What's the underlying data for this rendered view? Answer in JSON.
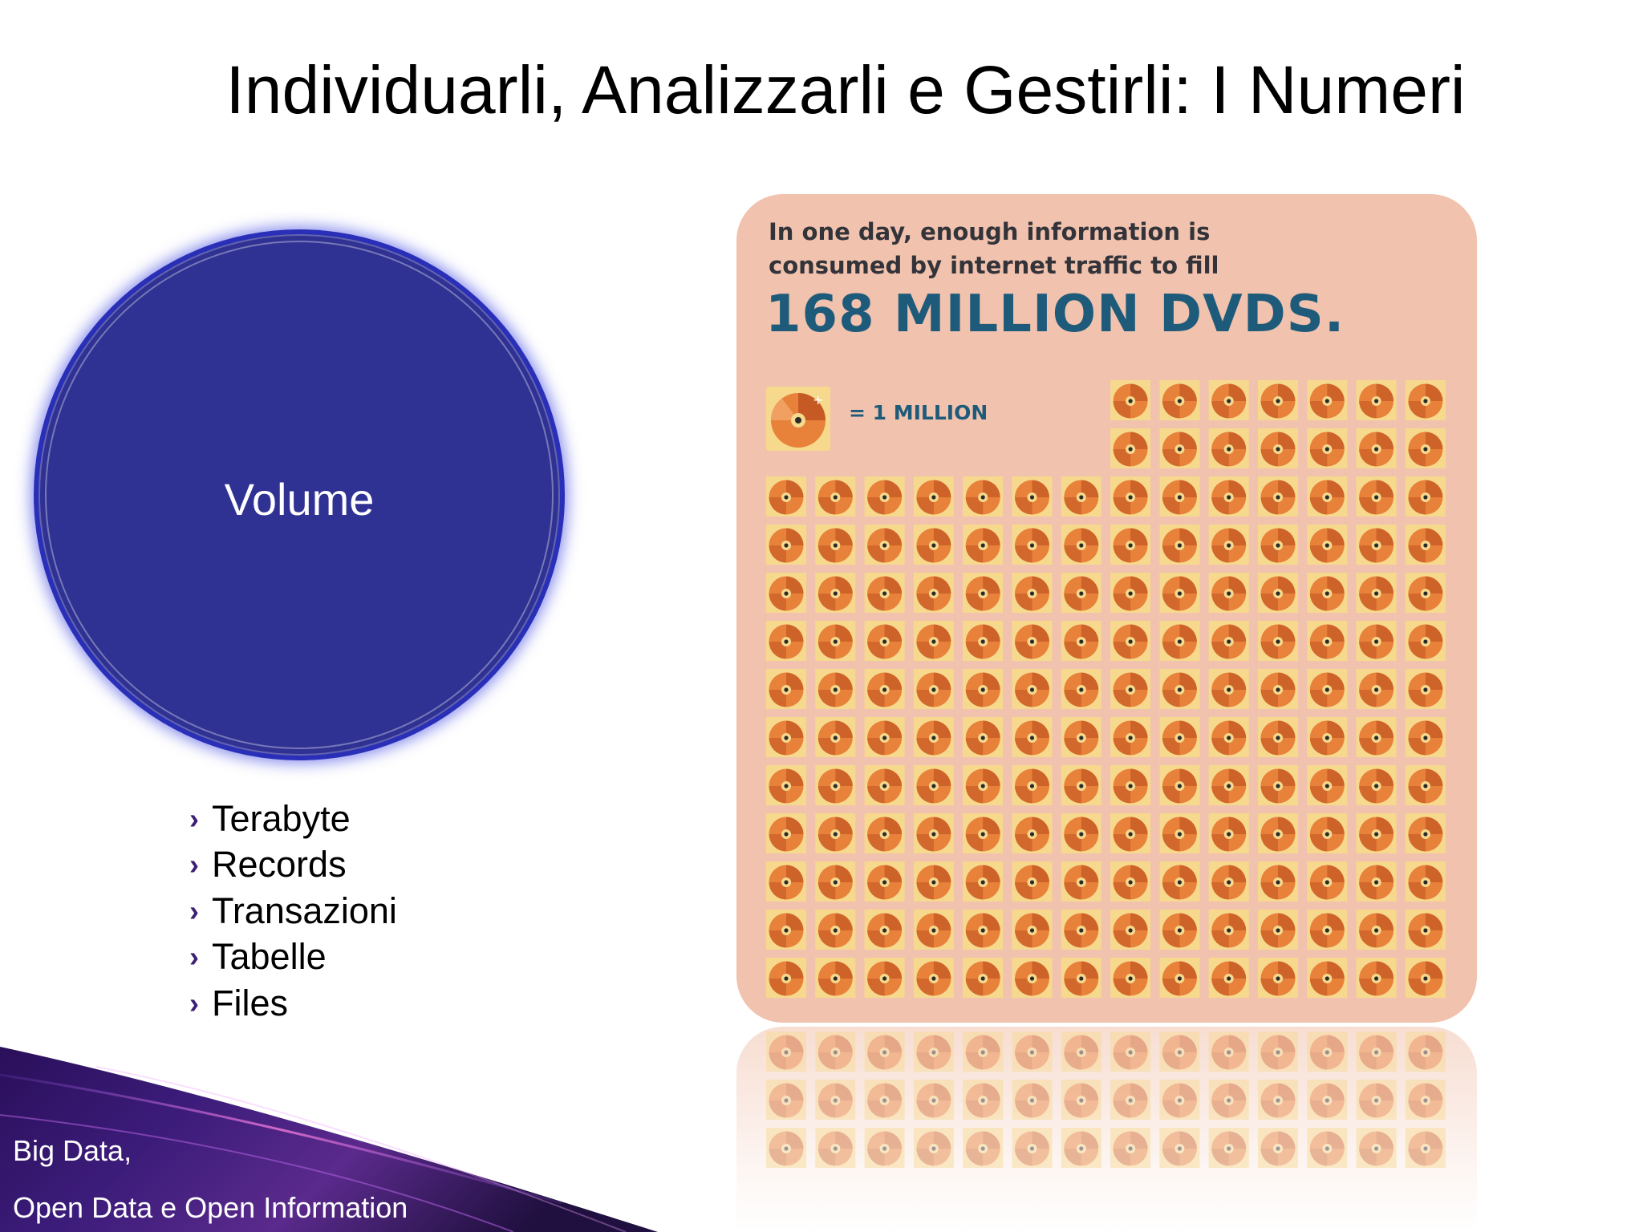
{
  "slide": {
    "title": "Individuarli, Analizzarli e Gestirli: I Numeri",
    "circle_label": "Volume",
    "bullets": [
      "Terabyte",
      "Records",
      "Transazioni",
      "Tabelle",
      "Files"
    ],
    "footer_line1": "Big Data,",
    "footer_line2": "Open Data  e Open Information"
  },
  "infographic": {
    "line1": "In one day, enough information is",
    "line2": "consumed by internet traffic to fill",
    "headline": "168 MILLION DVDS.",
    "legend_label": "= 1 MILLION",
    "disc_count": 168,
    "colors": {
      "background": "#f1c2ad",
      "tile": "#f7d98e",
      "disc": "#e8813a",
      "disc_dark": "#b84a1c",
      "headline": "#1e5b7a"
    }
  },
  "colors": {
    "circle_fill": "#2f3193",
    "circle_glow": "#2a2fb8",
    "bullet_chevron": "#3b1f73"
  }
}
